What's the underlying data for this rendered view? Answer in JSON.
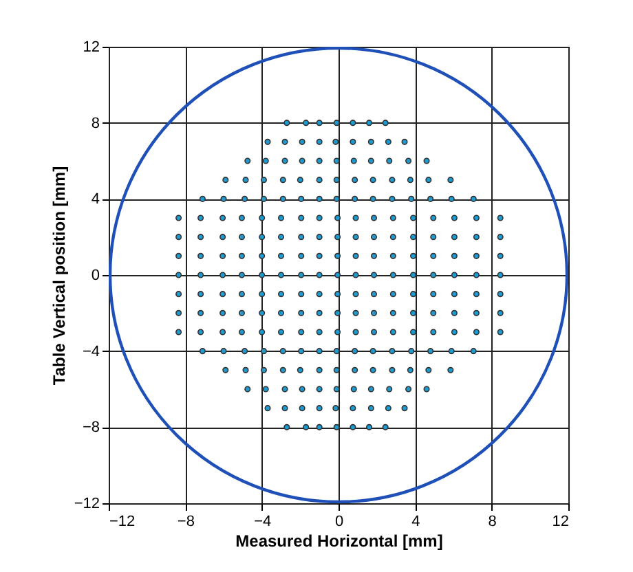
{
  "chart_data": {
    "type": "scatter",
    "xlabel": "Measured Horizontal [mm]",
    "ylabel": "Table Vertical position [mm]",
    "xlim": [
      -12,
      12
    ],
    "ylim": [
      -12,
      12
    ],
    "xticks": [
      -12,
      -8,
      -4,
      0,
      4,
      8,
      12
    ],
    "yticks": [
      -12,
      -8,
      -4,
      0,
      4,
      8,
      12
    ],
    "grid": true,
    "series": [
      {
        "color": "#1e9bd0",
        "marker": "circle",
        "x": [
          -2.7,
          -1.7,
          -1.0,
          -0.1,
          0.75,
          1.6,
          2.45,
          -3.7,
          -2.8,
          -1.9,
          -1.0,
          -0.15,
          0.75,
          1.7,
          2.6,
          3.45,
          -4.75,
          -3.8,
          -2.8,
          -1.9,
          -1.0,
          -0.1,
          0.8,
          1.7,
          2.65,
          3.65,
          4.6,
          -5.9,
          -4.85,
          -3.9,
          -2.9,
          -2.0,
          -1.0,
          -0.1,
          0.85,
          1.8,
          2.8,
          3.75,
          4.7,
          5.85,
          -7.1,
          -6.0,
          -4.9,
          -3.9,
          -2.9,
          -1.95,
          -1.0,
          -0.1,
          0.85,
          1.8,
          2.8,
          3.8,
          4.8,
          5.9,
          7.05,
          -8.35,
          -7.2,
          -6.05,
          -5.05,
          -4.0,
          -3.0,
          -1.95,
          -1.0,
          -0.05,
          0.9,
          1.85,
          2.85,
          3.9,
          4.95,
          6.05,
          7.2,
          8.45,
          -8.35,
          -7.2,
          -6.05,
          -5.05,
          -4.0,
          -3.0,
          -1.95,
          -1.0,
          -0.05,
          0.9,
          1.85,
          2.85,
          3.9,
          4.95,
          6.05,
          7.2,
          8.45,
          -8.35,
          -7.2,
          -6.05,
          -5.05,
          -4.0,
          -3.0,
          -1.95,
          -1.0,
          -0.05,
          0.9,
          1.85,
          2.85,
          3.9,
          4.95,
          6.05,
          7.2,
          8.45,
          -8.35,
          -7.2,
          -6.05,
          -5.05,
          -4.0,
          -3.0,
          -1.95,
          -1.0,
          -0.05,
          0.9,
          1.85,
          2.85,
          3.9,
          4.95,
          6.05,
          7.2,
          8.45,
          -8.35,
          -7.2,
          -6.05,
          -5.05,
          -4.0,
          -3.0,
          -1.95,
          -1.0,
          -0.05,
          0.9,
          1.85,
          2.85,
          3.9,
          4.95,
          6.05,
          7.2,
          8.45,
          -8.35,
          -7.2,
          -6.05,
          -5.05,
          -4.0,
          -3.0,
          -1.95,
          -1.0,
          -0.05,
          0.9,
          1.85,
          2.85,
          3.9,
          4.95,
          6.05,
          7.2,
          8.45,
          -8.35,
          -7.2,
          -6.05,
          -5.05,
          -4.0,
          -3.0,
          -1.95,
          -1.0,
          -0.05,
          0.9,
          1.85,
          2.85,
          3.9,
          4.95,
          6.05,
          7.2,
          8.45,
          -7.1,
          -6.0,
          -4.9,
          -3.9,
          -2.9,
          -1.95,
          -1.0,
          -0.1,
          0.85,
          1.8,
          2.8,
          3.8,
          4.8,
          5.9,
          7.05,
          -5.9,
          -4.85,
          -3.9,
          -2.9,
          -2.0,
          -1.0,
          -0.1,
          0.85,
          1.8,
          2.8,
          3.75,
          4.7,
          5.85,
          -4.75,
          -3.8,
          -2.8,
          -1.9,
          -1.0,
          -0.1,
          0.8,
          1.7,
          2.65,
          3.65,
          4.6,
          -3.7,
          -2.8,
          -1.9,
          -1.0,
          -0.15,
          0.75,
          1.7,
          2.6,
          3.45,
          -2.7,
          -1.7,
          -1.0,
          -0.1,
          0.75,
          1.6,
          2.45
        ],
        "values": [
          8,
          8,
          8,
          8,
          8,
          8,
          8,
          7,
          7,
          7,
          7,
          7,
          7,
          7,
          7,
          7,
          6,
          6,
          6,
          6,
          6,
          6,
          6,
          6,
          6,
          6,
          6,
          5,
          5,
          5,
          5,
          5,
          5,
          5,
          5,
          5,
          5,
          5,
          5,
          5,
          4,
          4,
          4,
          4,
          4,
          4,
          4,
          4,
          4,
          4,
          4,
          4,
          4,
          4,
          4,
          3,
          3,
          3,
          3,
          3,
          3,
          3,
          3,
          3,
          3,
          3,
          3,
          3,
          3,
          3,
          3,
          3,
          2,
          2,
          2,
          2,
          2,
          2,
          2,
          2,
          2,
          2,
          2,
          2,
          2,
          2,
          2,
          2,
          2,
          1,
          1,
          1,
          1,
          1,
          1,
          1,
          1,
          1,
          1,
          1,
          1,
          1,
          1,
          1,
          1,
          1,
          0,
          0,
          0,
          0,
          0,
          0,
          0,
          0,
          0,
          0,
          0,
          0,
          0,
          0,
          0,
          0,
          0,
          -1,
          -1,
          -1,
          -1,
          -1,
          -1,
          -1,
          -1,
          -1,
          -1,
          -1,
          -1,
          -1,
          -1,
          -1,
          -1,
          -1,
          -2,
          -2,
          -2,
          -2,
          -2,
          -2,
          -2,
          -2,
          -2,
          -2,
          -2,
          -2,
          -2,
          -2,
          -2,
          -2,
          -2,
          -3,
          -3,
          -3,
          -3,
          -3,
          -3,
          -3,
          -3,
          -3,
          -3,
          -3,
          -3,
          -3,
          -3,
          -3,
          -3,
          -3,
          -4,
          -4,
          -4,
          -4,
          -4,
          -4,
          -4,
          -4,
          -4,
          -4,
          -4,
          -4,
          -4,
          -4,
          -4,
          -5,
          -5,
          -5,
          -5,
          -5,
          -5,
          -5,
          -5,
          -5,
          -5,
          -5,
          -5,
          -5,
          -6,
          -6,
          -6,
          -6,
          -6,
          -6,
          -6,
          -6,
          -6,
          -6,
          -6,
          -7,
          -7,
          -7,
          -7,
          -7,
          -7,
          -7,
          -7,
          -7,
          -8,
          -8,
          -8,
          -8,
          -8,
          -8,
          -8
        ]
      }
    ]
  }
}
